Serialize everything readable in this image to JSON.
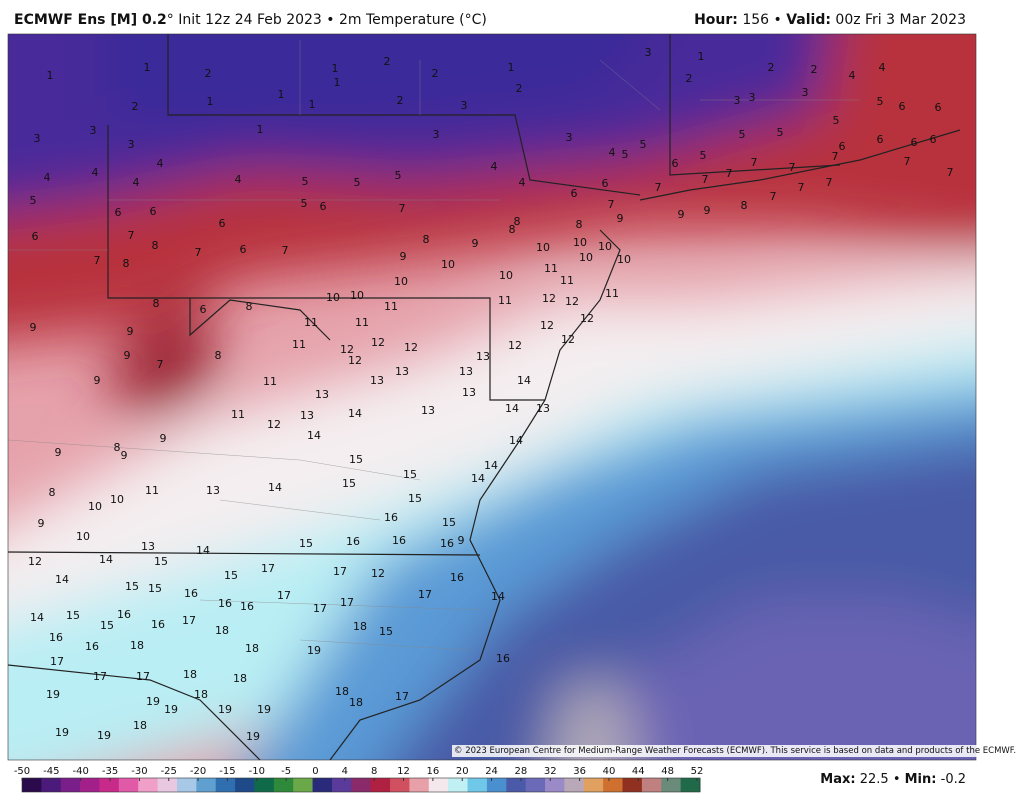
{
  "header": {
    "model": "ECMWF Ens [M] 0.2",
    "info": "° Init 12z 24 Feb 2023 • 2m Temperature (°C)",
    "hour_label": "Hour:",
    "hour": "156 •",
    "valid_label": "Valid:",
    "valid": "00z Fri 3 Mar 2023"
  },
  "map_labels": [
    1,
    1,
    2,
    1,
    1,
    1,
    1,
    1,
    2,
    2,
    2,
    1,
    2,
    3,
    3,
    1,
    2,
    2,
    2,
    4,
    4,
    3,
    3,
    3,
    5,
    6,
    6,
    2,
    3,
    3,
    3,
    1,
    3,
    3,
    4,
    5,
    5,
    5,
    5,
    5,
    6,
    6,
    6,
    6,
    4,
    4,
    4,
    4,
    4,
    5,
    5,
    5,
    4,
    4,
    6,
    5,
    7,
    7,
    7,
    7,
    7,
    5,
    6,
    6,
    5,
    6,
    7,
    6,
    6,
    7,
    7,
    7,
    7,
    7,
    7,
    7,
    6,
    7,
    8,
    6,
    7,
    6,
    7,
    8,
    9,
    8,
    8,
    8,
    9,
    9,
    9,
    8,
    7,
    8,
    9,
    10,
    10,
    10,
    10,
    10,
    11,
    10,
    10,
    10,
    11,
    10,
    10,
    11,
    11,
    12,
    12,
    11,
    8,
    6,
    8,
    9,
    9,
    11,
    11,
    12,
    12,
    9,
    8,
    11,
    12,
    12,
    12,
    12,
    13,
    12,
    12,
    7,
    9,
    13,
    13,
    13,
    11,
    14,
    13,
    13,
    11,
    13,
    14,
    14,
    13,
    13,
    12,
    14,
    8,
    9,
    9,
    9,
    14,
    15,
    15,
    14,
    8,
    10,
    10,
    11,
    13,
    14,
    15,
    15,
    14,
    9,
    10,
    16,
    15,
    13,
    14,
    15,
    16,
    16,
    16,
    9,
    12,
    14,
    15,
    15,
    17,
    17,
    12,
    14,
    15,
    15,
    16,
    16,
    16,
    17,
    17,
    17,
    17,
    16,
    14,
    14,
    15,
    15,
    16,
    16,
    17,
    18,
    18,
    15,
    16,
    16,
    18,
    18,
    19,
    16,
    17,
    17,
    17,
    18,
    18,
    18,
    19,
    18,
    18,
    17,
    19,
    19,
    19,
    19,
    18,
    19,
    19,
    19
  ],
  "colorbar": {
    "ticks": [
      -50,
      -45,
      -40,
      -35,
      -30,
      -25,
      -20,
      -15,
      -10,
      -5,
      0,
      4,
      8,
      12,
      16,
      20,
      24,
      28,
      32,
      36,
      40,
      44,
      48,
      52
    ],
    "colors": [
      "#2a0a4a",
      "#4b1a7a",
      "#7a1f8a",
      "#a3208a",
      "#c82a8a",
      "#e05aa8",
      "#f0a0c8",
      "#e8c8e0",
      "#a8c8e8",
      "#5fa0d0",
      "#2f6fb0",
      "#1f4a8a",
      "#0f6a4a",
      "#2e8a3a",
      "#6aa84a",
      "#2a2a7a",
      "#5a3a9a",
      "#8a2a6a",
      "#b02040",
      "#d05060",
      "#e8a0a8",
      "#f4e8ec",
      "#c0f0f4",
      "#70c8e8",
      "#4a90d0",
      "#4a5aa8",
      "#6a6ab8",
      "#9a8ac8",
      "#b8a8b8",
      "#e0a060",
      "#d07030",
      "#903020",
      "#c08080",
      "#6a8a7a",
      "#206a4a"
    ]
  },
  "copyright": "© 2023 European Centre for Medium-Range Weather Forecasts (ECMWF). This service is based on data and products of the ECMWF.",
  "stats": {
    "max_label": "Max:",
    "max": 22.5,
    "min_label": "Min:",
    "min": -0.2
  }
}
